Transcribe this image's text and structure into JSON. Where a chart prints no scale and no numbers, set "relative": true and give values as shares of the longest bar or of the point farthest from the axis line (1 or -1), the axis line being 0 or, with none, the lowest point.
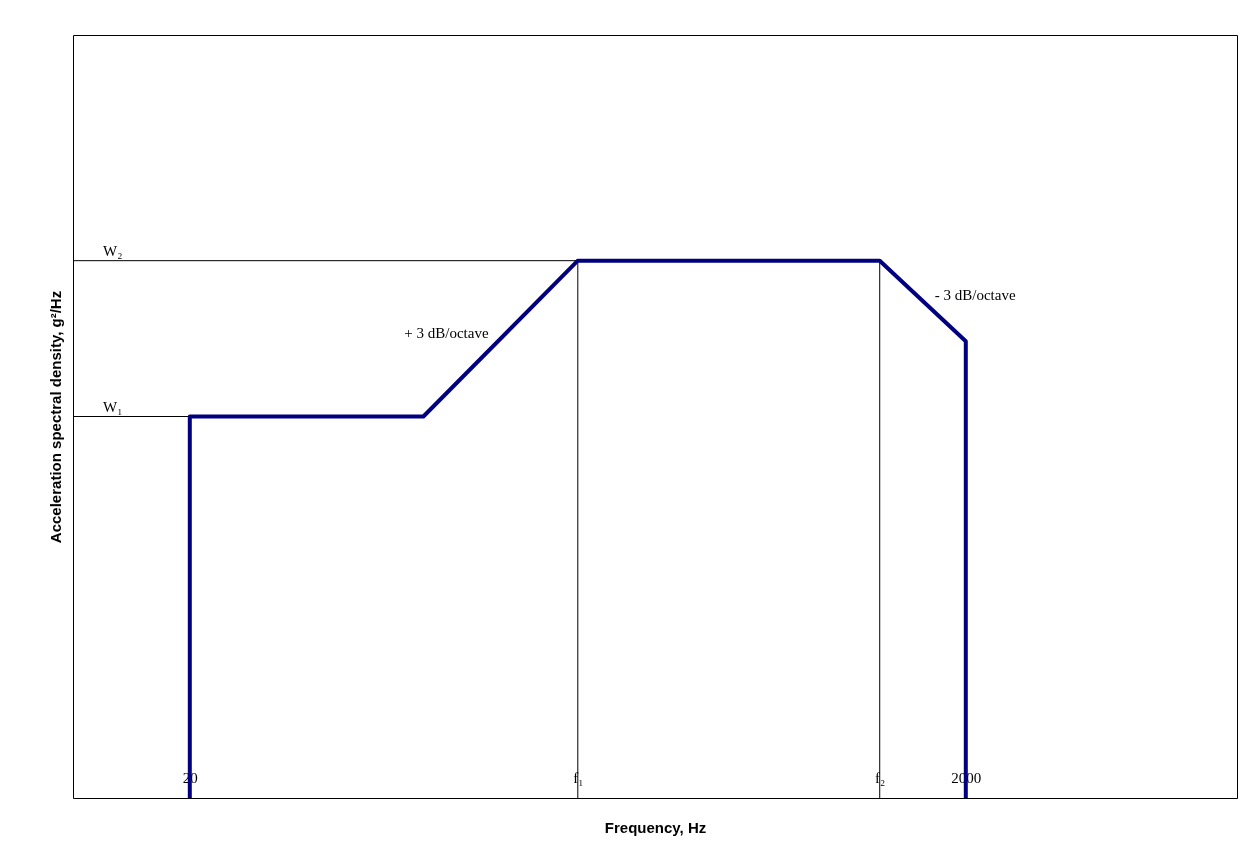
{
  "chart_data": {
    "type": "line",
    "xlabel": "Frequency, Hz",
    "ylabel": "Acceleration spectral density, g²/Hz",
    "relative": true,
    "log": "x",
    "xlim": [
      10,
      10000
    ],
    "xticks": [
      20,
      {
        "value": 200,
        "label": "f₁"
      },
      {
        "value": 1200,
        "label": "f₂"
      },
      2000
    ],
    "series": [
      {
        "color": "#000080",
        "x": [
          20,
          20,
          80,
          200,
          1200,
          2000,
          2000
        ],
        "values": [
          0,
          0.71,
          0.71,
          1,
          1,
          0.85,
          0
        ]
      }
    ],
    "ref_lines": [
      {
        "axis": "y",
        "value": 0.71,
        "label": "W₁"
      },
      {
        "axis": "y",
        "value": 1,
        "label": "W₂"
      },
      {
        "axis": "x",
        "value": 200
      },
      {
        "axis": "x",
        "value": 1200
      }
    ],
    "annotations": [
      "+ 3 dB/octave",
      "- 3 dB/octave"
    ],
    "grid": false,
    "marker": "none",
    "line_style": "solid"
  }
}
